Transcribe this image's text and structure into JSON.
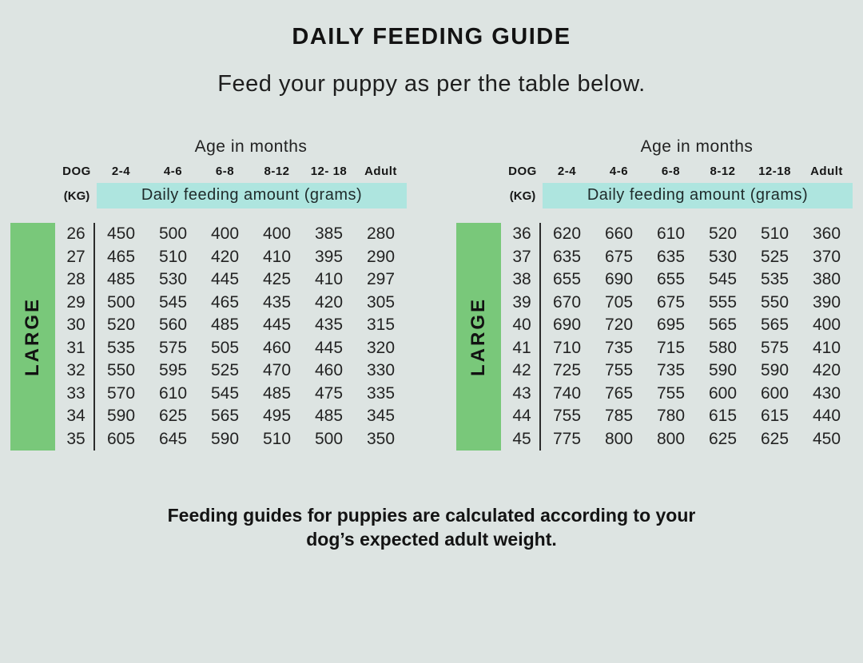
{
  "page": {
    "title": "DAILY FEEDING GUIDE",
    "subtitle": "Feed your puppy as per the table below.",
    "footer_line1": "Feeding guides for puppies are calculated according to your",
    "footer_line2": "dog’s expected adult weight."
  },
  "colors": {
    "background": "#dde4e2",
    "green_bar": "#79c87a",
    "teal_highlight": "#aee5df",
    "text": "#1c1c1c"
  },
  "tables": [
    {
      "side_label": "LARGE",
      "age_header": "Age in months",
      "dog_label": "DOG",
      "kg_label": "(KG)",
      "amount_label": "Daily feeding amount (grams)",
      "age_columns": [
        "2-4",
        "4-6",
        "6-8",
        "8-12",
        "12- 18",
        "Adult"
      ],
      "rows": [
        {
          "kg": "26",
          "values": [
            "450",
            "500",
            "400",
            "400",
            "385",
            "280"
          ]
        },
        {
          "kg": "27",
          "values": [
            "465",
            "510",
            "420",
            "410",
            "395",
            "290"
          ]
        },
        {
          "kg": "28",
          "values": [
            "485",
            "530",
            "445",
            "425",
            "410",
            "297"
          ]
        },
        {
          "kg": "29",
          "values": [
            "500",
            "545",
            "465",
            "435",
            "420",
            "305"
          ]
        },
        {
          "kg": "30",
          "values": [
            "520",
            "560",
            "485",
            "445",
            "435",
            "315"
          ]
        },
        {
          "kg": "31",
          "values": [
            "535",
            "575",
            "505",
            "460",
            "445",
            "320"
          ]
        },
        {
          "kg": "32",
          "values": [
            "550",
            "595",
            "525",
            "470",
            "460",
            "330"
          ]
        },
        {
          "kg": "33",
          "values": [
            "570",
            "610",
            "545",
            "485",
            "475",
            "335"
          ]
        },
        {
          "kg": "34",
          "values": [
            "590",
            "625",
            "565",
            "495",
            "485",
            "345"
          ]
        },
        {
          "kg": "35",
          "values": [
            "605",
            "645",
            "590",
            "510",
            "500",
            "350"
          ]
        }
      ]
    },
    {
      "side_label": "LARGE",
      "age_header": "Age in months",
      "dog_label": "DOG",
      "kg_label": "(KG)",
      "amount_label": "Daily feeding amount (grams)",
      "age_columns": [
        "2-4",
        "4-6",
        "6-8",
        "8-12",
        "12-18",
        "Adult"
      ],
      "rows": [
        {
          "kg": "36",
          "values": [
            "620",
            "660",
            "610",
            "520",
            "510",
            "360"
          ]
        },
        {
          "kg": "37",
          "values": [
            "635",
            "675",
            "635",
            "530",
            "525",
            "370"
          ]
        },
        {
          "kg": "38",
          "values": [
            "655",
            "690",
            "655",
            "545",
            "535",
            "380"
          ]
        },
        {
          "kg": "39",
          "values": [
            "670",
            "705",
            "675",
            "555",
            "550",
            "390"
          ]
        },
        {
          "kg": "40",
          "values": [
            "690",
            "720",
            "695",
            "565",
            "565",
            "400"
          ]
        },
        {
          "kg": "41",
          "values": [
            "710",
            "735",
            "715",
            "580",
            "575",
            "410"
          ]
        },
        {
          "kg": "42",
          "values": [
            "725",
            "755",
            "735",
            "590",
            "590",
            "420"
          ]
        },
        {
          "kg": "43",
          "values": [
            "740",
            "765",
            "755",
            "600",
            "600",
            "430"
          ]
        },
        {
          "kg": "44",
          "values": [
            "755",
            "785",
            "780",
            "615",
            "615",
            "440"
          ]
        },
        {
          "kg": "45",
          "values": [
            "775",
            "800",
            "800",
            "625",
            "625",
            "450"
          ]
        }
      ]
    }
  ]
}
